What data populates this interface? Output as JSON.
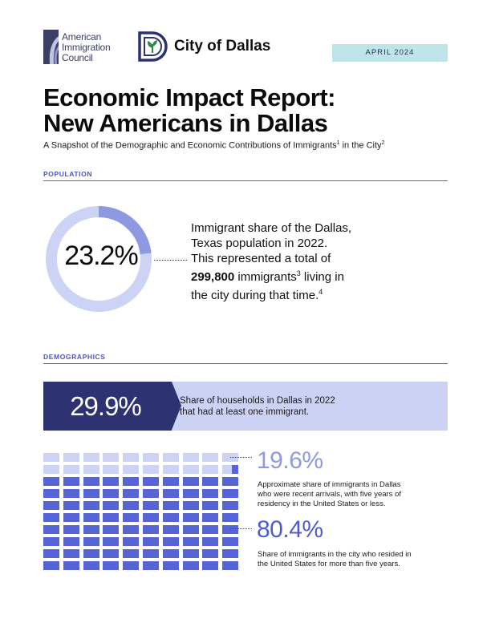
{
  "header": {
    "org_logo_text": [
      "American",
      "Immigration",
      "Council"
    ],
    "city_name": "City of Dallas",
    "date": "APRIL 2024"
  },
  "title_lines": [
    "Economic Impact Report:",
    "New Americans in Dallas"
  ],
  "subtitle": {
    "part1": "A Snapshot of the Demographic and Economic Contributions of Immigrants",
    "sup1": "1",
    "part2": " in the City",
    "sup2": "2"
  },
  "population": {
    "section_label": "POPULATION",
    "share_value": "23.2%",
    "share_fraction": 0.232,
    "text_lines": [
      "Immigrant share of the Dallas,",
      "Texas population in 2022.",
      "This represented a total of"
    ],
    "count": "299,800",
    "after_count": " immigrants",
    "sup_count": "3",
    "after_sup": " living in",
    "last_line": "the city during that time.",
    "sup_last": "4"
  },
  "demographics": {
    "section_label": "DEMOGRAPHICS",
    "households_value": "29.9%",
    "households_text_lines": [
      "Share of households in Dallas in 2022",
      "that had at least one immigrant."
    ],
    "recent_value": "19.6%",
    "recent_fraction": 0.196,
    "recent_text_lines": [
      "Approximate share of immigrants in Dallas",
      "who were recent arrivals, with five years of",
      "residency in the United States or less."
    ],
    "longterm_value": "80.4%",
    "longterm_fraction": 0.804,
    "longterm_text_lines": [
      "Share of immigrants in the city who resided in",
      "the United States for more than five years."
    ]
  },
  "colors": {
    "accent": "#4a55c8",
    "navy": "#2c3370",
    "light_periwinkle": "#cdd3f4",
    "mid_periwinkle": "#8f99e2",
    "dark_periwinkle": "#5764d6",
    "badge": "#bfe5ea"
  }
}
